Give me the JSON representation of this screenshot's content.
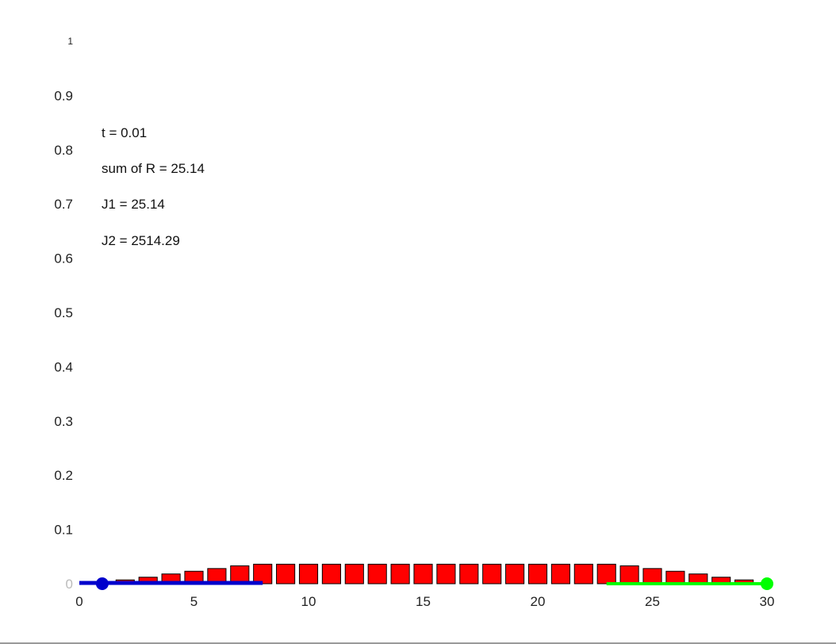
{
  "chart_data": {
    "type": "bar",
    "title": "",
    "xlabel": "",
    "ylabel": "",
    "xlim": [
      0,
      30
    ],
    "ylim": [
      0,
      1
    ],
    "grid": false,
    "x_ticks": [
      "0",
      "5",
      "10",
      "15",
      "20",
      "25",
      "30"
    ],
    "y_ticks": [
      "0",
      "0.1",
      "0.2",
      "0.3",
      "0.4",
      "0.5",
      "0.6",
      "0.7",
      "0.8",
      "0.9",
      "1"
    ],
    "bar_x": [
      2,
      3,
      4,
      5,
      6,
      7,
      8,
      9,
      10,
      11,
      12,
      13,
      14,
      15,
      16,
      17,
      18,
      19,
      20,
      21,
      22,
      23,
      24,
      25,
      26,
      27,
      28,
      29
    ],
    "bar_values": [
      0.007,
      0.012,
      0.018,
      0.023,
      0.028,
      0.033,
      0.036,
      0.036,
      0.036,
      0.036,
      0.036,
      0.036,
      0.036,
      0.036,
      0.036,
      0.036,
      0.036,
      0.036,
      0.036,
      0.036,
      0.036,
      0.036,
      0.033,
      0.028,
      0.023,
      0.018,
      0.012,
      0.007
    ],
    "bar_color": "#ff0000",
    "left_segment": {
      "x_start": 0,
      "x_end": 8,
      "y": 0,
      "color": "#0000cc"
    },
    "left_marker": {
      "x": 1,
      "y": 0,
      "color": "#0000cc"
    },
    "right_segment": {
      "x_start": 23,
      "x_end": 30,
      "y": 0,
      "color": "#00ff00"
    },
    "right_marker": {
      "x": 30,
      "y": 0,
      "color": "#00ff00"
    },
    "annotations": [
      "t = 0.01",
      "sum of R = 25.14",
      "J1 = 25.14",
      "J2 = 2514.29"
    ]
  }
}
